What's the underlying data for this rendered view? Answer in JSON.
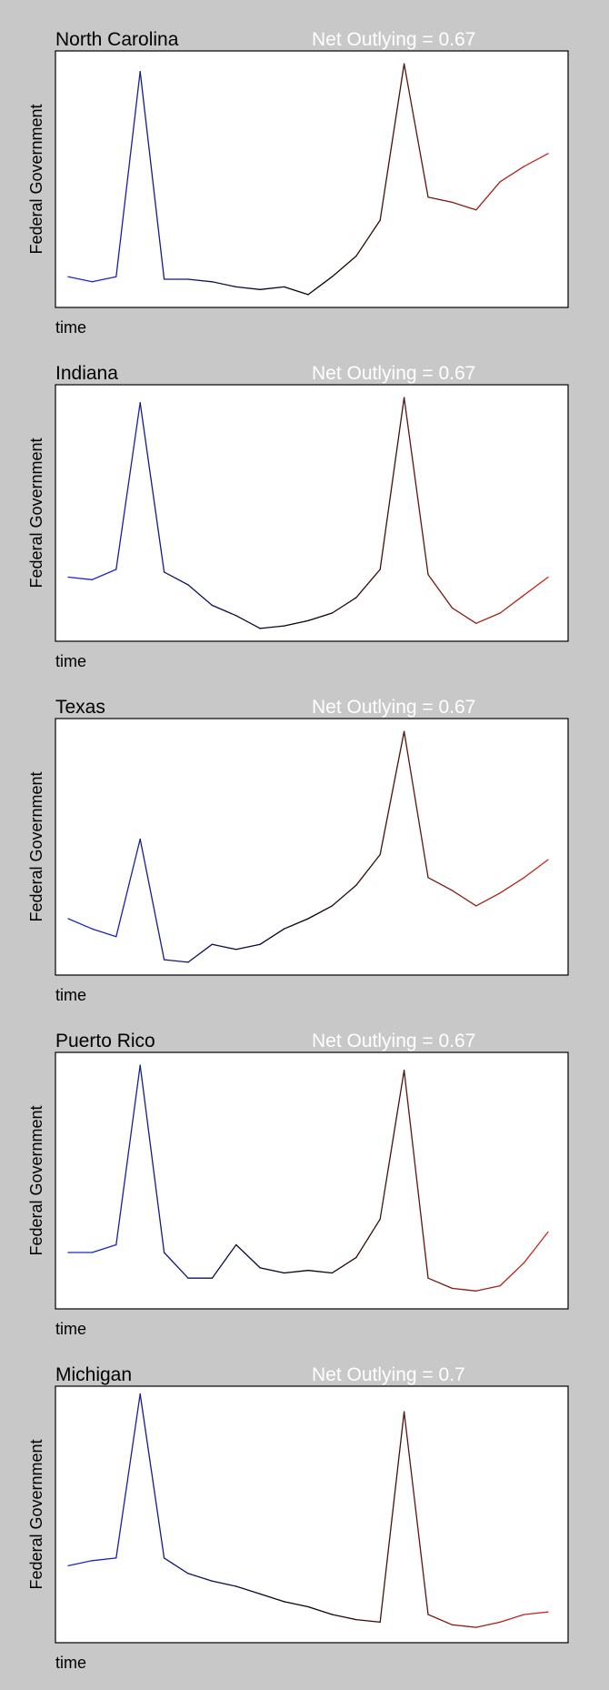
{
  "colors": {
    "background": "#c8c8c8",
    "plot_face": "#ffffff",
    "axis": "#000000",
    "net_text": "#ffffff",
    "start": "#1f2bd1",
    "middle": "#000000",
    "end": "#d42a1f"
  },
  "chart_data": [
    {
      "type": "line",
      "title": "North Carolina",
      "annotation": "Net Outlying = 0.67",
      "xlabel": "time",
      "ylabel": "Federal Government",
      "x": [
        0,
        5,
        10,
        15,
        20,
        25,
        30,
        35,
        40,
        45,
        50,
        55,
        60,
        65,
        70,
        75,
        80,
        85,
        90,
        95,
        100
      ],
      "y": [
        0.12,
        0.1,
        0.12,
        0.92,
        0.11,
        0.11,
        0.1,
        0.08,
        0.07,
        0.08,
        0.05,
        0.12,
        0.2,
        0.34,
        0.95,
        0.43,
        0.41,
        0.38,
        0.49,
        0.55,
        0.6
      ]
    },
    {
      "type": "line",
      "title": "Indiana",
      "annotation": "Net Outlying = 0.67",
      "xlabel": "time",
      "ylabel": "Federal Government",
      "x": [
        0,
        5,
        10,
        15,
        20,
        25,
        30,
        35,
        40,
        45,
        50,
        55,
        60,
        65,
        70,
        75,
        80,
        85,
        90,
        95,
        100
      ],
      "y": [
        0.25,
        0.24,
        0.28,
        0.93,
        0.27,
        0.22,
        0.14,
        0.1,
        0.05,
        0.06,
        0.08,
        0.11,
        0.17,
        0.28,
        0.95,
        0.26,
        0.13,
        0.07,
        0.11,
        0.18,
        0.25
      ]
    },
    {
      "type": "line",
      "title": "Texas",
      "annotation": "Net Outlying = 0.67",
      "xlabel": "time",
      "ylabel": "Federal Government",
      "x": [
        0,
        5,
        10,
        15,
        20,
        25,
        30,
        35,
        40,
        45,
        50,
        55,
        60,
        65,
        70,
        75,
        80,
        85,
        90,
        95,
        100
      ],
      "y": [
        0.22,
        0.18,
        0.15,
        0.53,
        0.06,
        0.05,
        0.12,
        0.1,
        0.12,
        0.18,
        0.22,
        0.27,
        0.35,
        0.47,
        0.95,
        0.38,
        0.33,
        0.27,
        0.32,
        0.38,
        0.45
      ]
    },
    {
      "type": "line",
      "title": "Puerto Rico",
      "annotation": "Net Outlying = 0.67",
      "xlabel": "time",
      "ylabel": "Federal Government",
      "x": [
        0,
        5,
        10,
        15,
        20,
        25,
        30,
        35,
        40,
        45,
        50,
        55,
        60,
        65,
        70,
        75,
        80,
        85,
        90,
        95,
        100
      ],
      "y": [
        0.22,
        0.22,
        0.25,
        0.95,
        0.22,
        0.12,
        0.12,
        0.25,
        0.16,
        0.14,
        0.15,
        0.14,
        0.2,
        0.35,
        0.93,
        0.12,
        0.08,
        0.07,
        0.09,
        0.18,
        0.3
      ]
    },
    {
      "type": "line",
      "title": "Michigan",
      "annotation": "Net Outlying = 0.7",
      "xlabel": "time",
      "ylabel": "Federal Government",
      "x": [
        0,
        5,
        10,
        15,
        20,
        25,
        30,
        35,
        40,
        45,
        50,
        55,
        60,
        65,
        70,
        75,
        80,
        85,
        90,
        95,
        100
      ],
      "y": [
        0.3,
        0.32,
        0.33,
        0.97,
        0.33,
        0.27,
        0.24,
        0.22,
        0.19,
        0.16,
        0.14,
        0.11,
        0.09,
        0.08,
        0.9,
        0.11,
        0.07,
        0.06,
        0.08,
        0.11,
        0.12
      ]
    }
  ]
}
